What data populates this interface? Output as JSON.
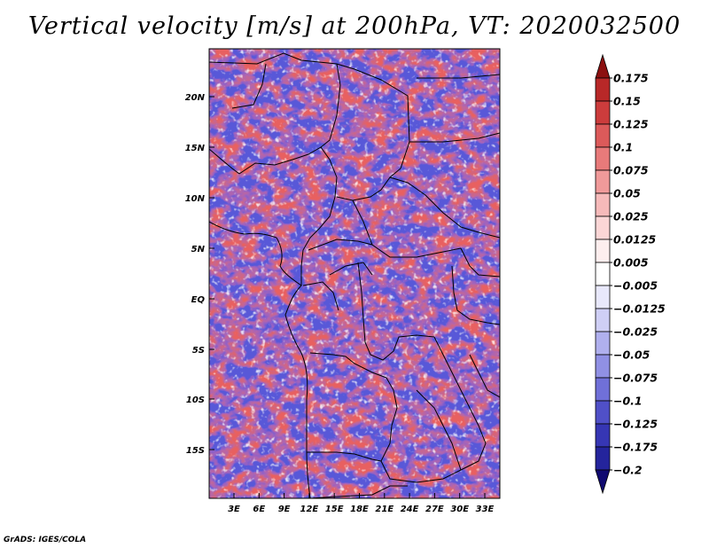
{
  "title": "Vertical velocity [m/s] at 200hPa, VT: 2020032500",
  "footer": "GrADS: IGES/COLA",
  "axes": {
    "y_labels": [
      "20N",
      "15N",
      "10N",
      "5N",
      "EQ",
      "5S",
      "10S",
      "15S"
    ],
    "x_labels": [
      "3E",
      "6E",
      "9E",
      "12E",
      "15E",
      "18E",
      "21E",
      "24E",
      "27E",
      "30E",
      "33E"
    ]
  },
  "colorbar": {
    "labels": [
      "0.175",
      "0.15",
      "0.125",
      "0.1",
      "0.075",
      "0.05",
      "0.025",
      "0.0125",
      "0.005",
      "-0.005",
      "-0.0125",
      "-0.025",
      "-0.05",
      "-0.075",
      "-0.1",
      "-0.125",
      "-0.175",
      "-0.2"
    ],
    "colors": [
      "#a01818",
      "#b82828",
      "#cc3c3c",
      "#dc5a5a",
      "#e87a7a",
      "#f09a9a",
      "#f6baba",
      "#fbd6d6",
      "#fdeeee",
      "#ffffff",
      "#e8e8fb",
      "#cfcff5",
      "#b0b0ee",
      "#9090e4",
      "#7070d8",
      "#5050c8",
      "#3636b4",
      "#24249c",
      "#141480"
    ],
    "top_arrow_color": "#8c1010",
    "bottom_arrow_color": "#100a70"
  }
}
